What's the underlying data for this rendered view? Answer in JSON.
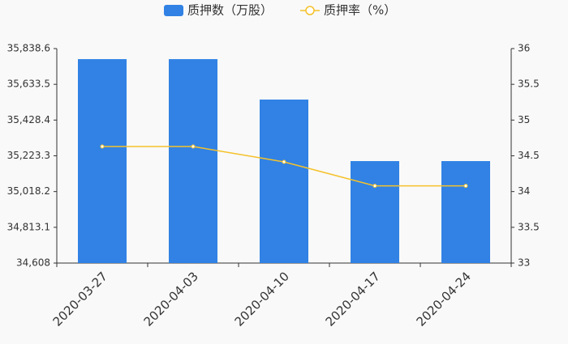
{
  "chart_data": {
    "type": "bar",
    "categories": [
      "2020-03-27",
      "2020-04-03",
      "2020-04-10",
      "2020-04-17",
      "2020-04-24"
    ],
    "series": [
      {
        "name": "质押数（万股）",
        "type": "bar",
        "color": "#3182e4",
        "values": [
          35778,
          35778,
          35546,
          35193,
          35193
        ]
      },
      {
        "name": "质押率（%）",
        "type": "line",
        "color": "#f5c12a",
        "axis": "y2",
        "values": [
          34.63,
          34.63,
          34.415,
          34.08,
          34.08
        ]
      }
    ],
    "ylim": [
      34608,
      35838.6
    ],
    "yticks": [
      {
        "value": 34608,
        "label": "34,608"
      },
      {
        "value": 34813.1,
        "label": "34,813.1"
      },
      {
        "value": 35018.2,
        "label": "35,018.2"
      },
      {
        "value": 35223.3,
        "label": "35,223.3"
      },
      {
        "value": 35428.4,
        "label": "35,428.4"
      },
      {
        "value": 35633.5,
        "label": "35,633.5"
      },
      {
        "value": 35838.6,
        "label": "35,838.6"
      }
    ],
    "y2lim": [
      33,
      36
    ],
    "y2ticks": [
      33,
      33.5,
      34,
      34.5,
      35,
      35.5,
      36
    ],
    "grid": false
  }
}
